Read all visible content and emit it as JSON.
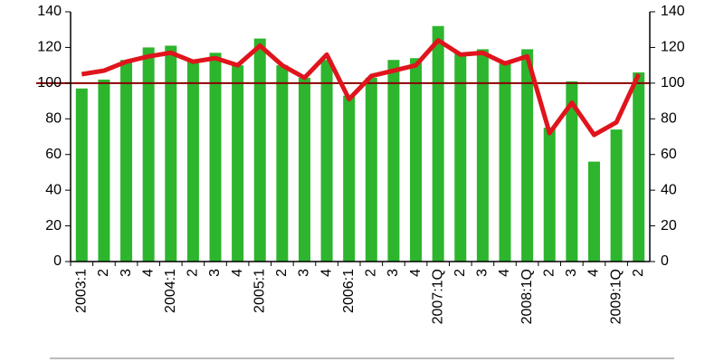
{
  "chart_data": {
    "type": "bar",
    "categories": [
      "2003:1",
      "2",
      "3",
      "4",
      "2004:1",
      "2",
      "3",
      "4",
      "2005:1",
      "2",
      "3",
      "4",
      "2006:1",
      "2",
      "3",
      "4",
      "2007:1Q",
      "2",
      "3",
      "4",
      "2008:1Q",
      "2",
      "3",
      "4",
      "2009:1Q",
      "2"
    ],
    "series": [
      {
        "type": "bar",
        "color": "#2db52d",
        "values": [
          97,
          102,
          113,
          120,
          121,
          112,
          117,
          110,
          125,
          110,
          103,
          113,
          93,
          103,
          113,
          114,
          132,
          117,
          119,
          111,
          119,
          75,
          101,
          56,
          74,
          106
        ]
      },
      {
        "type": "line",
        "axis": "y2",
        "color": "#e0141c",
        "values": [
          105,
          107,
          112,
          115,
          117,
          112,
          114,
          110,
          121,
          110,
          103,
          116,
          91,
          104,
          107,
          110,
          124,
          116,
          117,
          111,
          115,
          72,
          89,
          71,
          78,
          105
        ]
      }
    ],
    "reference_line": {
      "value": 100,
      "color": "#8b0000"
    },
    "ylim": [
      0,
      140
    ],
    "yticks": [
      0,
      20,
      40,
      60,
      80,
      100,
      120,
      140
    ],
    "y2lim": [
      0,
      140
    ],
    "y2ticks": [
      0,
      20,
      40,
      60,
      80,
      100,
      120,
      140
    ]
  }
}
